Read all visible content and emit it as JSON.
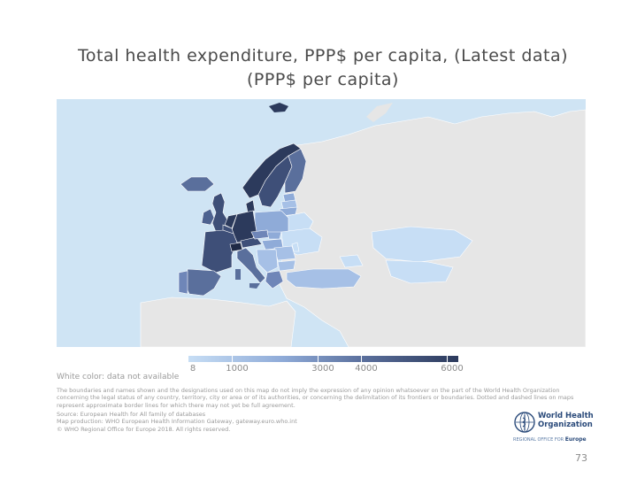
{
  "title": "Total health expenditure, PPP$ per capita, (Latest data) (PPP$ per capita)",
  "legend": {
    "no_data_label": "White color: data not available",
    "scale_min": 8,
    "scale_max": 6000,
    "ticks": [
      {
        "label": "8",
        "value": 8
      },
      {
        "label": "1000",
        "value": 1000
      },
      {
        "label": "3000",
        "value": 3000
      },
      {
        "label": "4000",
        "value": 4000
      },
      {
        "label": "6000",
        "value": 6000
      }
    ],
    "colors": [
      "#c7def5",
      "#8fabd8",
      "#5a6f9c",
      "#2c3a5c"
    ]
  },
  "map_colors": {
    "sea": "#cfe4f4",
    "land_no_data": "#e6e6e6",
    "border": "#ffffff"
  },
  "disclaimer": "The boundaries and names shown and the designations used on this map do not imply the expression of any opinion whatsoever on the part of the World Health Organization concerning the legal status of any country, territory, city or area or of its authorities, or concerning the delimitation of its frontiers or boundaries. Dotted and dashed lines on maps represent approximate border lines for which there may not yet be full agreement.",
  "source_lines": [
    "Source: European Health for All family of databases",
    "Map production: WHO European Health Information Gateway, gateway.euro.who.int",
    "© WHO Regional Office for Europe 2018. All rights reserved."
  ],
  "logo": {
    "line1": "World Health",
    "line2": "Organization",
    "region_prefix": "REGIONAL OFFICE FOR",
    "region": "Europe"
  },
  "page_number": "73"
}
